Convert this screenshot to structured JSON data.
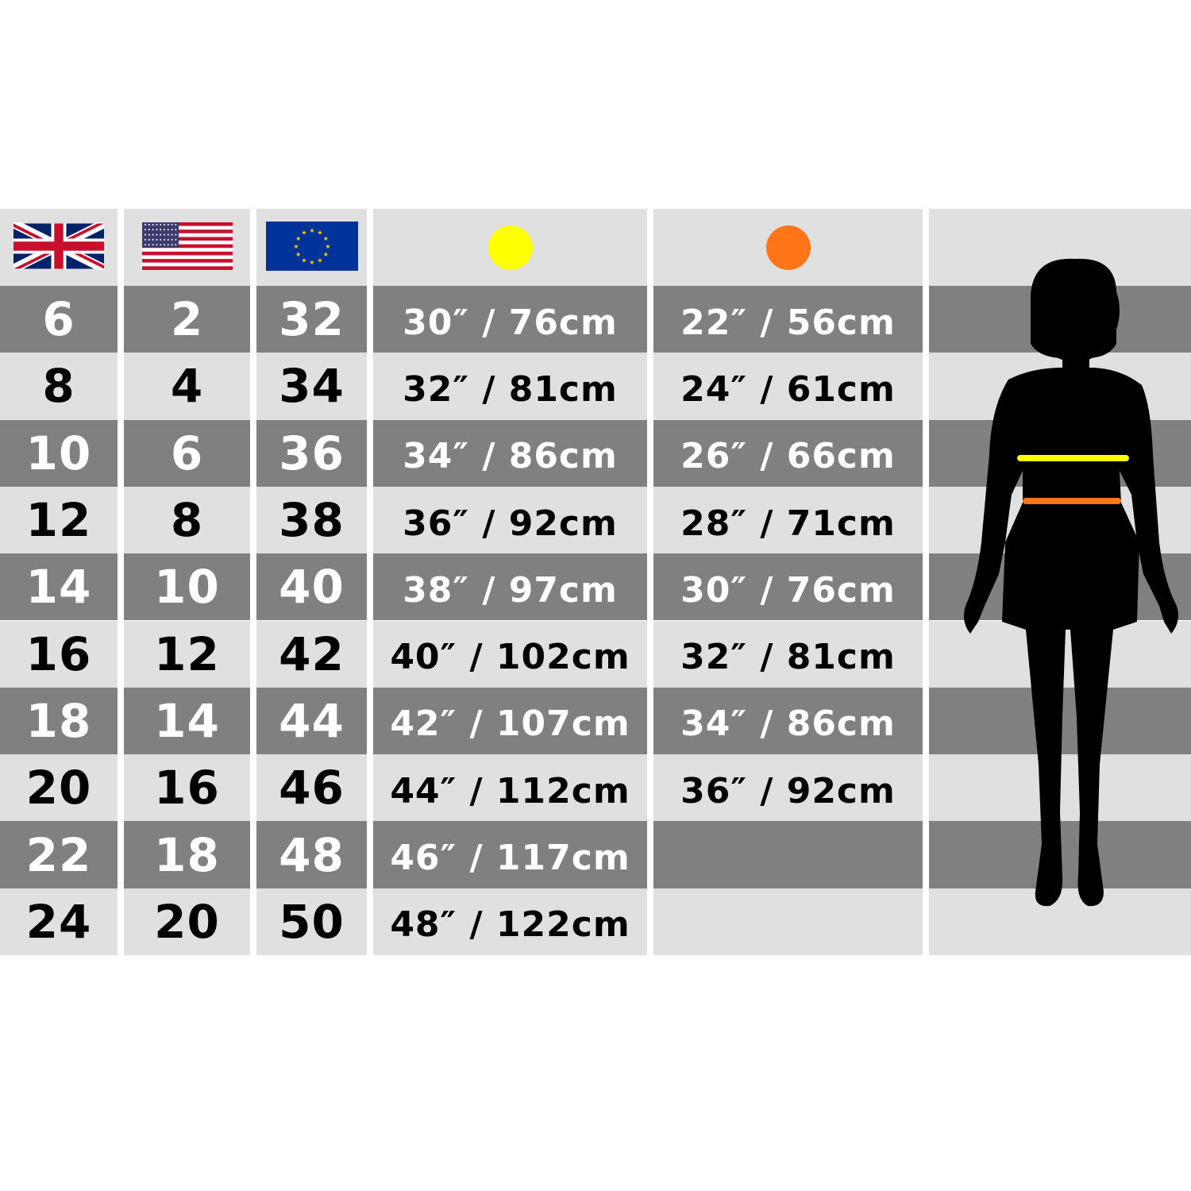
{
  "columns": [
    {
      "key": "uk",
      "header_icon": "uk-flag-icon"
    },
    {
      "key": "us",
      "header_icon": "us-flag-icon"
    },
    {
      "key": "eu",
      "header_icon": "eu-flag-icon"
    },
    {
      "key": "bust",
      "header_icon": "bust-dot-icon",
      "color": "#ffff00"
    },
    {
      "key": "waist",
      "header_icon": "waist-dot-icon",
      "color": "#ff7518"
    },
    {
      "key": "figure",
      "header_icon": "woman-silhouette-icon"
    }
  ],
  "colors": {
    "dark_row": "#808080",
    "light_row": "#e0e0e0",
    "bust_line": "#ffff00",
    "waist_line": "#ff7518"
  },
  "rows": [
    {
      "uk": "6",
      "us": "2",
      "eu": "32",
      "bust": "30″ / 76cm",
      "waist": "22″ / 56cm"
    },
    {
      "uk": "8",
      "us": "4",
      "eu": "34",
      "bust": "32″ / 81cm",
      "waist": "24″ / 61cm"
    },
    {
      "uk": "10",
      "us": "6",
      "eu": "36",
      "bust": "34″ / 86cm",
      "waist": "26″ / 66cm"
    },
    {
      "uk": "12",
      "us": "8",
      "eu": "38",
      "bust": "36″ / 92cm",
      "waist": "28″ / 71cm"
    },
    {
      "uk": "14",
      "us": "10",
      "eu": "40",
      "bust": "38″ / 97cm",
      "waist": "30″ / 76cm"
    },
    {
      "uk": "16",
      "us": "12",
      "eu": "42",
      "bust": "40″ / 102cm",
      "waist": "32″ / 81cm"
    },
    {
      "uk": "18",
      "us": "14",
      "eu": "44",
      "bust": "42″ / 107cm",
      "waist": "34″ / 86cm"
    },
    {
      "uk": "20",
      "us": "16",
      "eu": "46",
      "bust": "44″ / 112cm",
      "waist": "36″ / 92cm"
    },
    {
      "uk": "22",
      "us": "18",
      "eu": "48",
      "bust": "46″ / 117cm",
      "waist": ""
    },
    {
      "uk": "24",
      "us": "20",
      "eu": "50",
      "bust": "48″ / 122cm",
      "waist": ""
    }
  ]
}
